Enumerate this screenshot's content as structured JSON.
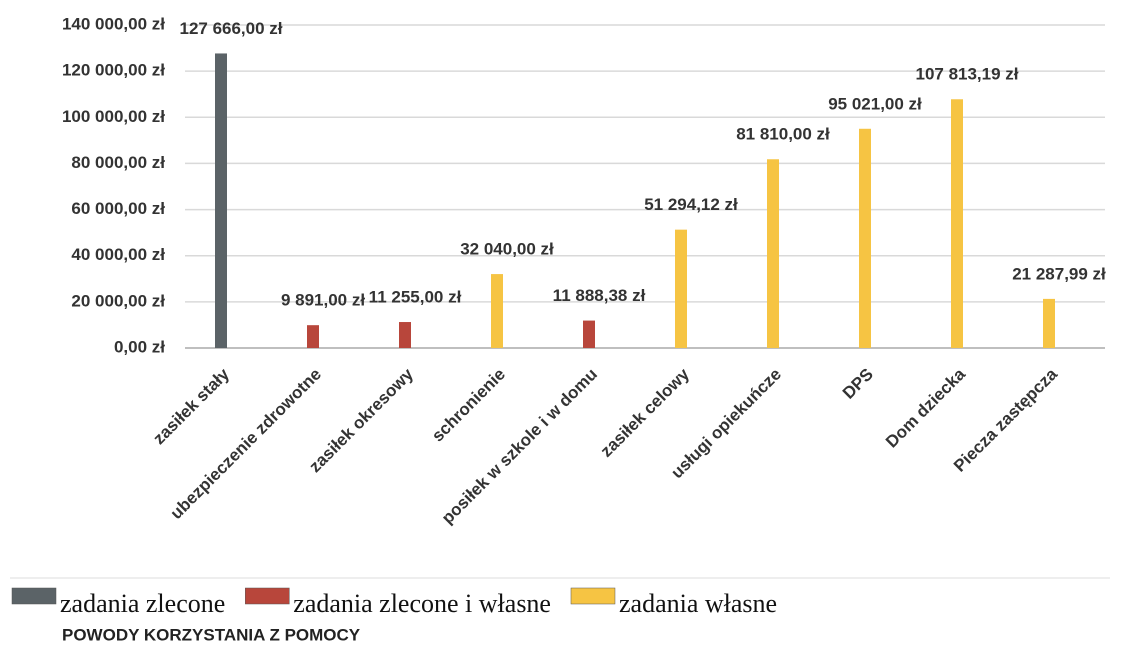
{
  "chart_data": {
    "type": "bar",
    "title": "POWODY KORZYSTANIA Z POMOCY",
    "categories": [
      "zasiłek stały",
      "ubezpieczenie zdrowotne",
      "zasiłek okresowy",
      "schronienie",
      "posiłek w szkole i w domu",
      "zasiłek celowy",
      "usługi opiekuńcze",
      "DPS",
      "Dom dziecka",
      "Piecza zastępcza"
    ],
    "series": [
      {
        "name": "zadania zlecone",
        "color": "#5b6367",
        "values": [
          127666,
          null,
          null,
          null,
          null,
          null,
          null,
          null,
          null,
          null
        ],
        "value_labels": [
          "127 666,00 zł",
          null,
          null,
          null,
          null,
          null,
          null,
          null,
          null,
          null
        ]
      },
      {
        "name": "zadania zlecone i własne",
        "color": "#b8463b",
        "values": [
          null,
          9891,
          11255,
          null,
          11888.38,
          null,
          null,
          null,
          null,
          null
        ],
        "value_labels": [
          null,
          "9 891,00 zł",
          "11 255,00 zł",
          null,
          "11 888,38 zł",
          null,
          null,
          null,
          null,
          null
        ]
      },
      {
        "name": "zadania własne",
        "color": "#f6c443",
        "values": [
          null,
          null,
          null,
          32040,
          null,
          51294.12,
          81810,
          95021,
          107813.19,
          21287.99
        ],
        "value_labels": [
          null,
          null,
          null,
          "32 040,00 zł",
          null,
          "51 294,12 zł",
          "81 810,00 zł",
          "95 021,00 zł",
          "107 813,19 zł",
          "21 287,99 zł"
        ]
      }
    ],
    "ylim": [
      0,
      140000
    ],
    "yticks": [
      {
        "value": 0,
        "label": "0,00 zł"
      },
      {
        "value": 20000,
        "label": "20 000,00 zł"
      },
      {
        "value": 40000,
        "label": "40 000,00 zł"
      },
      {
        "value": 60000,
        "label": "60 000,00 zł"
      },
      {
        "value": 80000,
        "label": "80 000,00 zł"
      },
      {
        "value": 100000,
        "label": "100 000,00 zł"
      },
      {
        "value": 120000,
        "label": "120 000,00 zł"
      },
      {
        "value": 140000,
        "label": "140 000,00 zł"
      }
    ],
    "grid": true
  }
}
